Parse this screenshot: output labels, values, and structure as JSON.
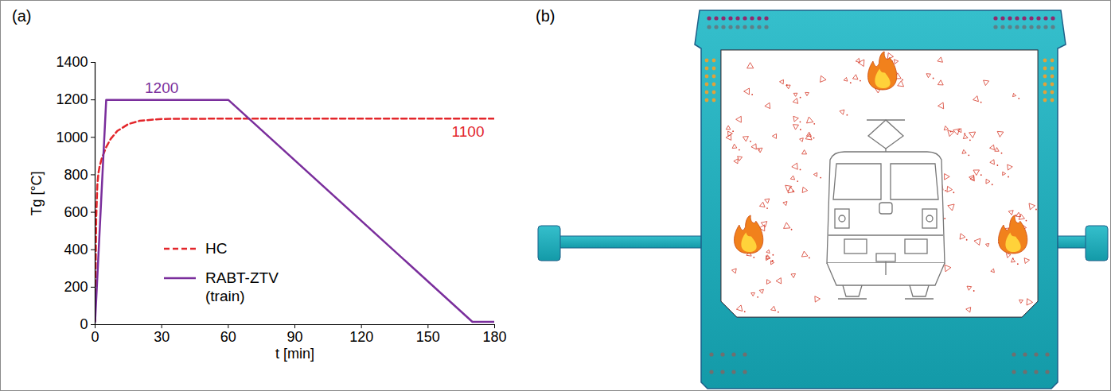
{
  "panel_labels": [
    "(a)",
    "(b)"
  ],
  "chart_data": {
    "type": "line",
    "x_label": "t [min]",
    "y_label": "Tg [°C]",
    "xlim": [
      0,
      180
    ],
    "xticks": [
      0,
      30,
      60,
      90,
      120,
      150,
      180
    ],
    "ylim": [
      0,
      1400
    ],
    "yticks": [
      0,
      200,
      400,
      600,
      800,
      1000,
      1200,
      1400
    ],
    "grid": false,
    "legend": "lower left",
    "series": [
      {
        "name": "HC",
        "color": "#e3262b",
        "line_style": "dashed",
        "x": [
          0,
          0.5,
          1,
          1.5,
          2,
          3,
          5,
          7,
          10,
          15,
          20,
          30,
          60,
          180
        ],
        "values": [
          20,
          569,
          744,
          809,
          843,
          887,
          948,
          991,
          1034,
          1071,
          1088,
          1098,
          1100,
          1100
        ]
      },
      {
        "name": "RABT-ZTV (train)",
        "color": "#7a2e9c",
        "line_style": "solid",
        "x": [
          0,
          5,
          60,
          170,
          180
        ],
        "values": [
          15,
          1200,
          1200,
          15,
          15
        ]
      }
    ],
    "annotations": [
      {
        "label": "1200",
        "x": 30,
        "y": 1200,
        "series": "RABT-ZTV (train)"
      },
      {
        "label": "1100",
        "x": 168,
        "y": 1100,
        "series": "HC"
      }
    ]
  }
}
